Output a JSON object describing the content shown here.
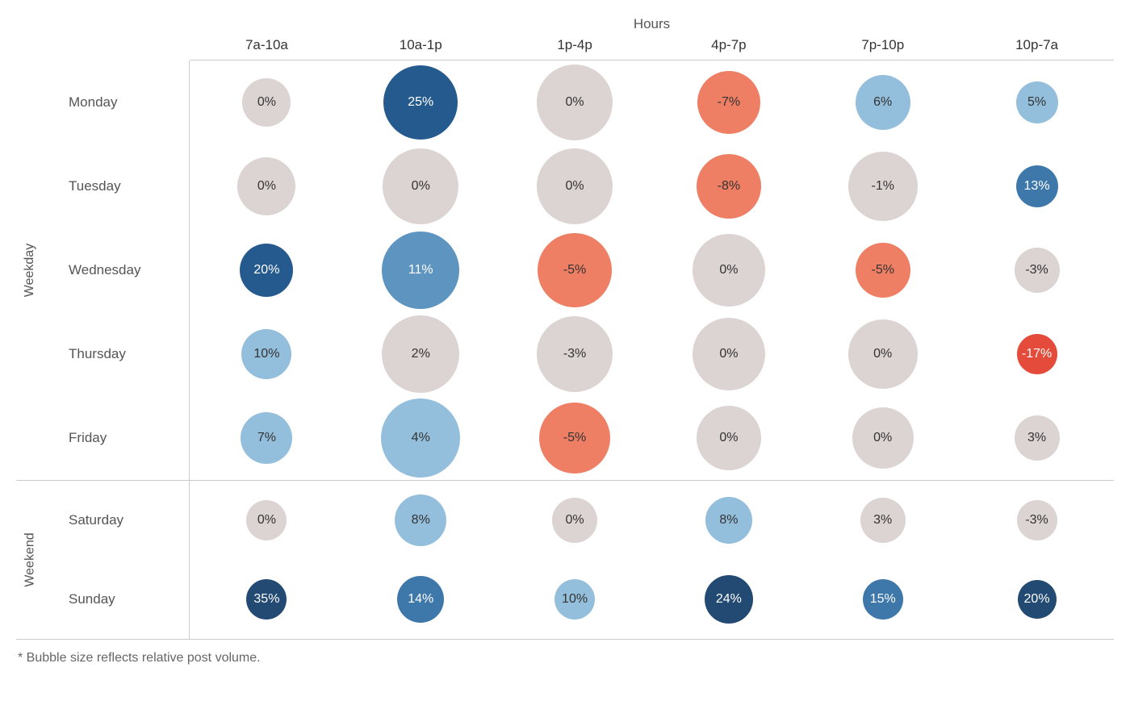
{
  "chart": {
    "type": "bubble-grid",
    "title_top": "Hours",
    "columns": [
      "7a-10a",
      "10a-1p",
      "1p-4p",
      "4p-7p",
      "7p-10p",
      "10p-7a"
    ],
    "groups": [
      {
        "name": "Weekday",
        "rows": [
          {
            "label": "Monday",
            "cells": [
              {
                "value": "0%",
                "size": 60,
                "fill": "#dcd3d3",
                "text": "#333333"
              },
              {
                "value": "25%",
                "size": 92,
                "fill": "#245a8d",
                "text": "#ffffff"
              },
              {
                "value": "0%",
                "size": 94,
                "fill": "#dcd3d3",
                "text": "#333333"
              },
              {
                "value": "-7%",
                "size": 78,
                "fill": "#ee7e64",
                "text": "#333333"
              },
              {
                "value": "6%",
                "size": 68,
                "fill": "#93bedc",
                "text": "#333333"
              },
              {
                "value": "5%",
                "size": 52,
                "fill": "#93bedc",
                "text": "#333333"
              }
            ]
          },
          {
            "label": "Tuesday",
            "cells": [
              {
                "value": "0%",
                "size": 72,
                "fill": "#dcd3d3",
                "text": "#333333"
              },
              {
                "value": "0%",
                "size": 94,
                "fill": "#dcd3d3",
                "text": "#333333"
              },
              {
                "value": "0%",
                "size": 94,
                "fill": "#dcd3d3",
                "text": "#333333"
              },
              {
                "value": "-8%",
                "size": 80,
                "fill": "#ee7e64",
                "text": "#333333"
              },
              {
                "value": "-1%",
                "size": 86,
                "fill": "#dcd3d3",
                "text": "#333333"
              },
              {
                "value": "13%",
                "size": 52,
                "fill": "#3e78ab",
                "text": "#ffffff"
              }
            ]
          },
          {
            "label": "Wednesday",
            "cells": [
              {
                "value": "20%",
                "size": 66,
                "fill": "#245a8d",
                "text": "#ffffff"
              },
              {
                "value": "11%",
                "size": 96,
                "fill": "#5d94c0",
                "text": "#ffffff"
              },
              {
                "value": "-5%",
                "size": 92,
                "fill": "#ee7e64",
                "text": "#333333"
              },
              {
                "value": "0%",
                "size": 90,
                "fill": "#dcd3d3",
                "text": "#333333"
              },
              {
                "value": "-5%",
                "size": 68,
                "fill": "#ee7e64",
                "text": "#333333"
              },
              {
                "value": "-3%",
                "size": 56,
                "fill": "#dcd3d3",
                "text": "#333333"
              }
            ]
          },
          {
            "label": "Thursday",
            "cells": [
              {
                "value": "10%",
                "size": 62,
                "fill": "#93bedc",
                "text": "#333333"
              },
              {
                "value": "2%",
                "size": 96,
                "fill": "#dcd3d3",
                "text": "#333333"
              },
              {
                "value": "-3%",
                "size": 94,
                "fill": "#dcd3d3",
                "text": "#333333"
              },
              {
                "value": "0%",
                "size": 90,
                "fill": "#dcd3d3",
                "text": "#333333"
              },
              {
                "value": "0%",
                "size": 86,
                "fill": "#dcd3d3",
                "text": "#333333"
              },
              {
                "value": "-17%",
                "size": 50,
                "fill": "#e44b3a",
                "text": "#ffffff"
              }
            ]
          },
          {
            "label": "Friday",
            "cells": [
              {
                "value": "7%",
                "size": 64,
                "fill": "#93bedc",
                "text": "#333333"
              },
              {
                "value": "4%",
                "size": 98,
                "fill": "#93bedc",
                "text": "#333333"
              },
              {
                "value": "-5%",
                "size": 88,
                "fill": "#ee7e64",
                "text": "#333333"
              },
              {
                "value": "0%",
                "size": 80,
                "fill": "#dcd3d3",
                "text": "#333333"
              },
              {
                "value": "0%",
                "size": 76,
                "fill": "#dcd3d3",
                "text": "#333333"
              },
              {
                "value": "3%",
                "size": 56,
                "fill": "#dcd3d3",
                "text": "#333333"
              }
            ]
          }
        ]
      },
      {
        "name": "Weekend",
        "rows": [
          {
            "label": "Saturday",
            "cells": [
              {
                "value": "0%",
                "size": 50,
                "fill": "#dcd3d3",
                "text": "#333333"
              },
              {
                "value": "8%",
                "size": 64,
                "fill": "#93bedc",
                "text": "#333333"
              },
              {
                "value": "0%",
                "size": 56,
                "fill": "#dcd3d3",
                "text": "#333333"
              },
              {
                "value": "8%",
                "size": 58,
                "fill": "#93bedc",
                "text": "#333333"
              },
              {
                "value": "3%",
                "size": 56,
                "fill": "#dcd3d3",
                "text": "#333333"
              },
              {
                "value": "-3%",
                "size": 50,
                "fill": "#dcd3d3",
                "text": "#333333"
              }
            ]
          },
          {
            "label": "Sunday",
            "cells": [
              {
                "value": "35%",
                "size": 50,
                "fill": "#224a72",
                "text": "#ffffff"
              },
              {
                "value": "14%",
                "size": 58,
                "fill": "#3e78ab",
                "text": "#ffffff"
              },
              {
                "value": "10%",
                "size": 50,
                "fill": "#93bedc",
                "text": "#333333"
              },
              {
                "value": "24%",
                "size": 60,
                "fill": "#224a72",
                "text": "#ffffff"
              },
              {
                "value": "15%",
                "size": 50,
                "fill": "#3e78ab",
                "text": "#ffffff"
              },
              {
                "value": "20%",
                "size": 48,
                "fill": "#224a72",
                "text": "#ffffff"
              }
            ]
          }
        ]
      }
    ],
    "footnote": "* Bubble size reflects relative post volume.",
    "styling": {
      "background_color": "#ffffff",
      "grid_line_color": "#cccccc",
      "header_font_size": 17,
      "label_font_size": 17,
      "bubble_font_size": 16,
      "footnote_font_size": 16,
      "colors_legend": {
        "neutral": "#dcd3d3",
        "light_blue": "#93bedc",
        "mid_blue": "#5d94c0",
        "blue": "#3e78ab",
        "dark_blue": "#245a8d",
        "darkest_blue": "#224a72",
        "light_red": "#ee7e64",
        "red": "#e44b3a"
      }
    }
  }
}
